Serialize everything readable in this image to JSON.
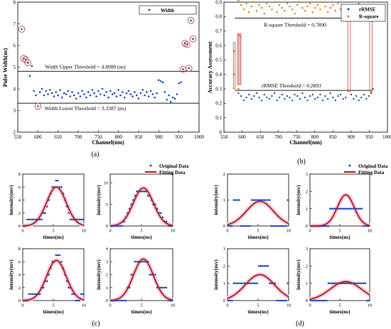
{
  "chart_data": [
    {
      "panel": "(a)",
      "type": "scatter",
      "xlabel": "Channel(nm)",
      "ylabel": "Pulse Width(ns)",
      "xlim": [
        550,
        1000
      ],
      "ylim": [
        2,
        8
      ],
      "xticks": [
        "550",
        "600",
        "650",
        "700",
        "750",
        "800",
        "850",
        "900",
        "950",
        "1000"
      ],
      "yticks": [
        "2",
        "3",
        "4",
        "5",
        "6",
        "7",
        "8"
      ],
      "legend": [
        "Width"
      ],
      "legend_position": "top-right",
      "series": [
        {
          "name": "Width",
          "color": "#1f4fbf",
          "x": [
            560,
            565,
            570,
            575,
            580,
            585,
            590,
            595,
            600,
            605,
            610,
            615,
            620,
            625,
            630,
            635,
            640,
            645,
            650,
            655,
            660,
            665,
            670,
            675,
            680,
            685,
            690,
            695,
            700,
            705,
            710,
            715,
            720,
            725,
            730,
            735,
            740,
            745,
            750,
            755,
            760,
            765,
            770,
            775,
            780,
            785,
            790,
            795,
            800,
            805,
            810,
            815,
            820,
            825,
            830,
            835,
            840,
            845,
            850,
            855,
            860,
            865,
            870,
            875,
            880,
            885,
            890,
            895,
            900,
            905,
            910,
            915,
            920,
            925,
            930,
            935,
            940,
            945,
            950,
            955,
            960,
            965,
            970,
            975,
            980,
            985
          ],
          "y": [
            6.75,
            5.4,
            5.35,
            5.2,
            4.6,
            5.05,
            3.9,
            3.7,
            3.2,
            3.85,
            4.0,
            3.7,
            3.9,
            3.75,
            3.95,
            3.8,
            3.65,
            3.85,
            3.7,
            3.95,
            3.6,
            3.8,
            3.75,
            3.9,
            3.65,
            3.85,
            3.7,
            3.55,
            3.8,
            3.65,
            3.9,
            3.75,
            3.6,
            3.85,
            3.7,
            3.95,
            3.8,
            3.65,
            3.9,
            3.75,
            4.0,
            3.7,
            3.85,
            3.6,
            3.9,
            3.75,
            3.8,
            3.65,
            3.95,
            3.7,
            3.85,
            3.6,
            3.8,
            3.9,
            3.75,
            3.65,
            3.85,
            3.7,
            3.55,
            3.8,
            3.95,
            3.7,
            3.85,
            3.65,
            3.9,
            3.75,
            3.6,
            3.8,
            4.4,
            4.35,
            4.3,
            3.85,
            3.5,
            3.7,
            3.4,
            3.6,
            3.55,
            3.75,
            4.25,
            4.3,
            4.9,
            6.1,
            6.05,
            4.95,
            7.15,
            6.3
          ]
        }
      ],
      "circled_points": [
        [
          560,
          6.75
        ],
        [
          565,
          5.4
        ],
        [
          570,
          5.35
        ],
        [
          575,
          5.2
        ],
        [
          600,
          3.2
        ],
        [
          960,
          4.9
        ],
        [
          965,
          6.1
        ],
        [
          970,
          6.05
        ],
        [
          975,
          4.95
        ],
        [
          980,
          7.15
        ],
        [
          985,
          6.3
        ]
      ],
      "annotations": [
        "Width Upper Threshold = 4.8088 (ns)",
        "Width Lower Threshold = 3.3387 (ns)"
      ],
      "thresholds": [
        4.8088,
        3.3387
      ]
    },
    {
      "panel": "(b)",
      "type": "scatter",
      "xlabel": "Channel(nm)",
      "ylabel": "Accuracy Assessment",
      "xlim": [
        550,
        1000
      ],
      "ylim": [
        0,
        0.9
      ],
      "xticks": [
        "550",
        "600",
        "650",
        "700",
        "750",
        "800",
        "850",
        "900",
        "950",
        "1000"
      ],
      "yticks": [
        "0",
        "0.1",
        "0.2",
        "0.3",
        "0.4",
        "0.5",
        "0.6",
        "0.7",
        "0.8",
        "0.9"
      ],
      "legend": [
        "rRMSE",
        "R-square"
      ],
      "legend_position": "top-right",
      "series": [
        {
          "name": "rRMSE",
          "color": "#1f4fbf",
          "x": [
            590,
            597,
            605,
            612,
            619,
            626,
            633,
            640,
            647,
            654,
            661,
            668,
            675,
            682,
            689,
            696,
            703,
            710,
            717,
            724,
            731,
            738,
            745,
            752,
            759,
            766,
            773,
            780,
            787,
            794,
            801,
            808,
            815,
            822,
            829,
            836,
            843,
            850,
            857,
            864,
            871,
            878,
            885,
            900,
            907,
            914,
            921,
            928,
            935,
            942,
            949,
            955,
            960
          ],
          "y": [
            0.27,
            0.25,
            0.22,
            0.24,
            0.26,
            0.23,
            0.25,
            0.27,
            0.24,
            0.22,
            0.26,
            0.24,
            0.23,
            0.25,
            0.27,
            0.22,
            0.24,
            0.26,
            0.23,
            0.25,
            0.24,
            0.22,
            0.26,
            0.25,
            0.23,
            0.27,
            0.24,
            0.22,
            0.25,
            0.26,
            0.23,
            0.24,
            0.26,
            0.22,
            0.25,
            0.23,
            0.27,
            0.24,
            0.22,
            0.25,
            0.26,
            0.23,
            0.24,
            0.26,
            0.23,
            0.25,
            0.22,
            0.24,
            0.26,
            0.23,
            0.25,
            0.27,
            0.3
          ]
        },
        {
          "name": "R-square",
          "color": "#e07b10",
          "x": [
            590,
            597,
            605,
            612,
            619,
            626,
            633,
            640,
            647,
            654,
            661,
            668,
            675,
            682,
            689,
            696,
            703,
            710,
            717,
            724,
            731,
            738,
            745,
            752,
            759,
            766,
            773,
            780,
            787,
            794,
            801,
            808,
            815,
            822,
            829,
            836,
            843,
            850,
            857,
            864,
            871,
            878,
            885,
            900,
            907,
            914,
            921,
            928,
            935,
            942,
            949,
            955,
            960
          ],
          "y": [
            0.91,
            0.88,
            0.85,
            0.89,
            0.83,
            0.87,
            0.9,
            0.84,
            0.88,
            0.86,
            0.82,
            0.89,
            0.87,
            0.85,
            0.9,
            0.83,
            0.88,
            0.86,
            0.84,
            0.89,
            0.87,
            0.85,
            0.82,
            0.88,
            0.9,
            0.86,
            0.84,
            0.87,
            0.89,
            0.83,
            0.86,
            0.88,
            0.85,
            0.9,
            0.87,
            0.83,
            0.86,
            0.88,
            0.84,
            0.89,
            0.85,
            0.87,
            0.86,
            0.88,
            0.84,
            0.87,
            0.89,
            0.85,
            0.83,
            0.88,
            0.86,
            0.82,
            0.8
          ]
        }
      ],
      "flagged_points": [
        [
          578,
          0.4
        ],
        [
          578,
          0.56
        ],
        [
          590,
          0.67
        ],
        [
          590,
          0.3
        ],
        [
          595,
          0.66
        ],
        [
          895,
          0.29
        ],
        [
          955,
          0.29
        ]
      ],
      "annotations": [
        "R-square Threshold = 0.7890",
        "rRMSE Threshold = 0.2893"
      ],
      "thresholds": [
        0.789,
        0.2893
      ]
    },
    {
      "panel": "(c)",
      "type": "scatter",
      "legend": [
        "Original Data",
        "Fitting Data"
      ],
      "legend_position": "top-right",
      "subplots": [
        {
          "xlabel": "times(ns)",
          "ylabel": "intensity(mv)",
          "xlim": [
            0,
            10
          ],
          "ylim": [
            0,
            8
          ],
          "xticks": [
            "0",
            "5",
            "10"
          ],
          "yticks": [
            "0",
            "2",
            "4",
            "6",
            "8"
          ],
          "amplitude": 6,
          "center": 5.5,
          "sigma": 1.6
        },
        {
          "xlabel": "times(ns)",
          "ylabel": "intensity(mv)",
          "xlim": [
            0,
            10
          ],
          "ylim": [
            0,
            12
          ],
          "xticks": [
            "0",
            "5",
            "10"
          ],
          "yticks": [
            "0",
            "5",
            "10"
          ],
          "amplitude": 8.8,
          "center": 5.3,
          "sigma": 1.6
        },
        {
          "xlabel": "times(ns)",
          "ylabel": "intensity(mv)",
          "xlim": [
            0,
            10
          ],
          "ylim": [
            0,
            8
          ],
          "xticks": [
            "0",
            "5",
            "10"
          ],
          "yticks": [
            "0",
            "2",
            "4",
            "6",
            "8"
          ],
          "amplitude": 6.2,
          "center": 5.5,
          "sigma": 1.6
        },
        {
          "xlabel": "times(ns)",
          "ylabel": "intensity(mv)",
          "xlim": [
            0,
            10
          ],
          "ylim": [
            0,
            4
          ],
          "xticks": [
            "0",
            "5",
            "10"
          ],
          "yticks": [
            "0",
            "1",
            "2",
            "3",
            "4"
          ],
          "amplitude": 3.2,
          "center": 5.3,
          "sigma": 1.6
        }
      ]
    },
    {
      "panel": "(d)",
      "type": "scatter",
      "legend": [
        "Original Data",
        "Fitting Data"
      ],
      "legend_position": "top-right",
      "subplots": [
        {
          "xlabel": "times(ns)",
          "ylabel": "intensity(mv)",
          "xlim": [
            0,
            10
          ],
          "ylim": [
            0,
            2
          ],
          "xticks": [
            "0",
            "5",
            "10"
          ],
          "yticks": [
            "0",
            "1",
            "2"
          ],
          "amplitude": 0.95,
          "center": 5.3,
          "sigma": 2.2
        },
        {
          "xlabel": "times(ns)",
          "ylabel": "intensity(mv)",
          "xlim": [
            0,
            10
          ],
          "ylim": [
            0,
            3
          ],
          "xticks": [
            "0",
            "5",
            "10"
          ],
          "yticks": [
            "0",
            "1",
            "2",
            "3"
          ],
          "amplitude": 1.8,
          "center": 6.0,
          "sigma": 1.4
        },
        {
          "xlabel": "times(ns)",
          "ylabel": "intensity(mv)",
          "xlim": [
            0,
            10
          ],
          "ylim": [
            0,
            3
          ],
          "xticks": [
            "0",
            "5",
            "10"
          ],
          "yticks": [
            "0",
            "1",
            "2",
            "3"
          ],
          "amplitude": 1.5,
          "center": 5.3,
          "sigma": 2.4
        },
        {
          "xlabel": "times(ns)",
          "ylabel": "intensity(mv)",
          "xlim": [
            0,
            10
          ],
          "ylim": [
            0,
            3
          ],
          "xticks": [
            "0",
            "5",
            "10"
          ],
          "yticks": [
            "0",
            "1",
            "2",
            "3"
          ],
          "amplitude": 1.1,
          "center": 6.0,
          "sigma": 2.6
        }
      ]
    }
  ],
  "panel_labels": [
    "(a)",
    "(b)",
    "(c)",
    "(d)"
  ],
  "colors": {
    "blue": "#1f4fbf",
    "orange": "#e07b10",
    "fit": "#b01e1e",
    "circle": "#c94a4a",
    "fit_band": "#f4c6d8"
  }
}
